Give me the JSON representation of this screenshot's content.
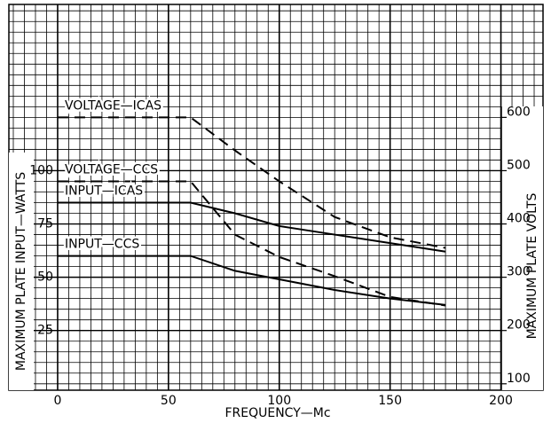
{
  "chart_data": {
    "type": "line",
    "x_label": "FREQUENCY—Mc",
    "y_label": "MAXIMUM PLATE INPUT—WATTS",
    "y2_label": "MAXIMUM PLATE VOLTS",
    "x": [
      0,
      60,
      80,
      100,
      125,
      150,
      175
    ],
    "series": [
      {
        "name": "VOLTAGE—ICAS",
        "color": "#000000",
        "style": "dashed",
        "axis": "y2",
        "values": [
          600,
          600,
          538,
          480,
          413,
          375,
          355
        ]
      },
      {
        "name": "VOLTAGE—CCS",
        "color": "#000000",
        "style": "dashed",
        "axis": "y2",
        "values": [
          480,
          480,
          380,
          338,
          302,
          263,
          247
        ]
      },
      {
        "name": "INPUT—ICAS",
        "color": "#000000",
        "style": "solid",
        "values": [
          85,
          85,
          80,
          74,
          70,
          66,
          62
        ]
      },
      {
        "name": "INPUT—CCS",
        "color": "#000000",
        "style": "solid",
        "values": [
          60,
          60,
          53,
          49,
          44,
          40,
          37
        ]
      }
    ],
    "xlim": [
      -22,
      219
    ],
    "xticks": [
      0,
      50,
      100,
      150,
      200
    ],
    "ylim": [
      -3,
      178
    ],
    "yticks": [
      25,
      50,
      75,
      100
    ],
    "y2lim": [
      88,
      812
    ],
    "y2ticks": [
      100,
      200,
      300,
      400,
      500,
      600
    ],
    "grid": true
  }
}
